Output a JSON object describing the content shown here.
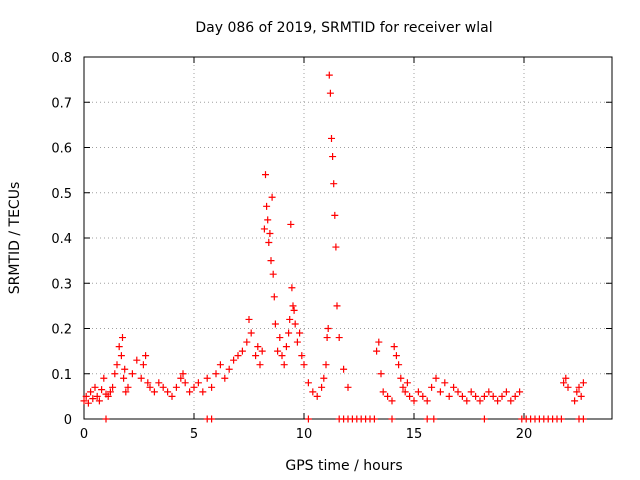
{
  "chart_data": {
    "type": "scatter",
    "title": "Day 086 of 2019, SRMTID for receiver wlal",
    "xlabel": "GPS time / hours",
    "ylabel": "SRMTID / TECUs",
    "xlim": [
      0,
      24
    ],
    "ylim": [
      0,
      0.8
    ],
    "x_ticks": [
      0,
      5,
      10,
      15,
      20
    ],
    "x_tick_labels": [
      "0",
      "5",
      "10",
      "15",
      "20"
    ],
    "y_ticks": [
      0,
      0.1,
      0.2,
      0.3,
      0.4,
      0.5,
      0.6,
      0.7,
      0.8
    ],
    "y_tick_labels": [
      "0",
      "0.1",
      "0.2",
      "0.3",
      "0.4",
      "0.5",
      "0.6",
      "0.7",
      "0.8"
    ],
    "grid": true,
    "marker": "+",
    "color": "#ff0000",
    "series": [
      {
        "name": "SRMTID",
        "x": [
          0.0,
          0.1,
          0.2,
          0.3,
          0.4,
          0.5,
          0.6,
          0.7,
          0.8,
          0.9,
          1.0,
          1.1,
          1.2,
          1.3,
          1.4,
          1.5,
          1.6,
          1.7,
          1.75,
          1.8,
          1.85,
          1.9,
          2.0,
          2.2,
          2.4,
          2.6,
          2.7,
          2.8,
          2.9,
          3.0,
          3.2,
          3.4,
          3.6,
          3.8,
          4.0,
          4.2,
          4.4,
          4.5,
          4.6,
          4.8,
          5.0,
          5.2,
          5.4,
          5.6,
          5.8,
          6.0,
          6.2,
          6.4,
          6.6,
          6.8,
          7.0,
          7.2,
          7.4,
          7.5,
          7.6,
          7.8,
          7.9,
          8.0,
          8.1,
          8.2,
          8.25,
          8.3,
          8.35,
          8.4,
          8.45,
          8.5,
          8.55,
          8.6,
          8.65,
          8.7,
          8.8,
          8.9,
          9.0,
          9.1,
          9.2,
          9.3,
          9.35,
          9.4,
          9.45,
          9.5,
          9.55,
          9.6,
          9.7,
          9.8,
          9.9,
          10.0,
          10.2,
          10.4,
          10.6,
          10.8,
          10.9,
          11.0,
          11.05,
          11.1,
          11.15,
          11.2,
          11.25,
          11.3,
          11.35,
          11.4,
          11.45,
          11.5,
          11.6,
          11.8,
          12.0,
          13.3,
          13.4,
          13.5,
          13.6,
          13.8,
          14.0,
          14.1,
          14.2,
          14.3,
          14.4,
          14.5,
          14.6,
          14.7,
          14.8,
          15.0,
          15.2,
          15.4,
          15.6,
          15.8,
          16.0,
          16.2,
          16.4,
          16.6,
          16.8,
          17.0,
          17.2,
          17.4,
          17.6,
          17.8,
          18.0,
          18.2,
          18.4,
          18.6,
          18.8,
          19.0,
          19.2,
          19.4,
          19.6,
          19.8,
          21.8,
          21.9,
          22.0,
          22.3,
          22.4,
          22.5,
          22.6,
          22.7,
          1.0,
          5.6,
          5.8,
          10.2,
          11.6,
          11.8,
          12.0,
          12.2,
          12.4,
          12.6,
          12.8,
          13.0,
          13.2,
          14.0,
          15.6,
          15.9,
          18.2,
          19.9,
          20.1,
          20.3,
          20.5,
          20.7,
          20.9,
          21.1,
          21.3,
          21.5,
          21.7,
          22.5,
          22.7
        ],
        "y": [
          0.04,
          0.05,
          0.035,
          0.06,
          0.045,
          0.07,
          0.05,
          0.04,
          0.065,
          0.09,
          0.055,
          0.05,
          0.06,
          0.07,
          0.1,
          0.12,
          0.16,
          0.14,
          0.18,
          0.09,
          0.11,
          0.06,
          0.07,
          0.1,
          0.13,
          0.09,
          0.12,
          0.14,
          0.08,
          0.07,
          0.06,
          0.08,
          0.07,
          0.06,
          0.05,
          0.07,
          0.09,
          0.1,
          0.08,
          0.06,
          0.07,
          0.08,
          0.06,
          0.09,
          0.07,
          0.1,
          0.12,
          0.09,
          0.11,
          0.13,
          0.14,
          0.15,
          0.17,
          0.22,
          0.19,
          0.14,
          0.16,
          0.12,
          0.15,
          0.42,
          0.54,
          0.47,
          0.44,
          0.39,
          0.41,
          0.35,
          0.49,
          0.32,
          0.27,
          0.21,
          0.15,
          0.18,
          0.14,
          0.12,
          0.16,
          0.19,
          0.22,
          0.43,
          0.29,
          0.25,
          0.24,
          0.21,
          0.17,
          0.19,
          0.14,
          0.12,
          0.08,
          0.06,
          0.05,
          0.07,
          0.09,
          0.12,
          0.18,
          0.2,
          0.76,
          0.72,
          0.62,
          0.58,
          0.52,
          0.45,
          0.38,
          0.25,
          0.18,
          0.11,
          0.07,
          0.15,
          0.17,
          0.1,
          0.06,
          0.05,
          0.04,
          0.16,
          0.14,
          0.12,
          0.09,
          0.07,
          0.06,
          0.08,
          0.05,
          0.04,
          0.06,
          0.05,
          0.04,
          0.07,
          0.09,
          0.06,
          0.08,
          0.05,
          0.07,
          0.06,
          0.05,
          0.04,
          0.06,
          0.05,
          0.04,
          0.05,
          0.06,
          0.05,
          0.04,
          0.05,
          0.06,
          0.04,
          0.05,
          0.06,
          0.08,
          0.09,
          0.07,
          0.04,
          0.06,
          0.07,
          0.05,
          0.08,
          0,
          0,
          0,
          0,
          0,
          0,
          0,
          0,
          0,
          0,
          0,
          0,
          0,
          0,
          0,
          0,
          0,
          0,
          0,
          0,
          0,
          0,
          0,
          0,
          0,
          0,
          0,
          0,
          0
        ]
      }
    ]
  }
}
